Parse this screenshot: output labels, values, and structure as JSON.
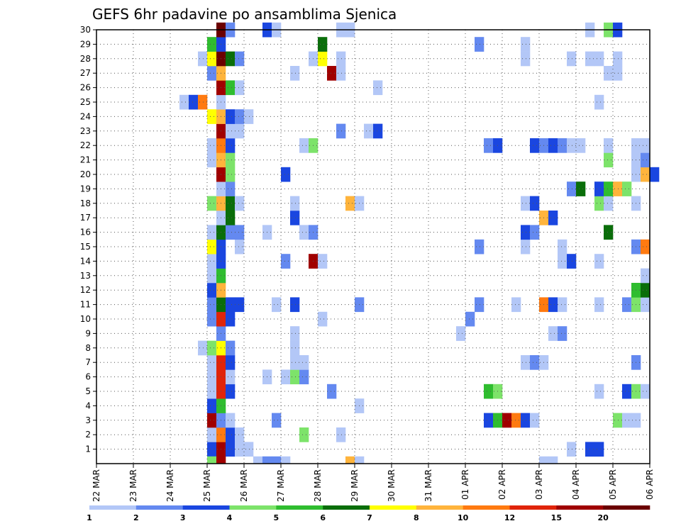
{
  "chart_data": {
    "type": "heatmap",
    "title": "GEFS 6hr padavine po ansamblima Sjenica",
    "x_tick_labels": [
      "22 MAR",
      "23 MAR",
      "24 MAR",
      "25 MAR",
      "26 MAR",
      "27 MAR",
      "28 MAR",
      "29 MAR",
      "30 MAR",
      "31 MAR",
      "01 APR",
      "02 APR",
      "03 APR",
      "04 APR",
      "05 APR",
      "06 APR"
    ],
    "y_tick_labels": [
      "1",
      "2",
      "3",
      "4",
      "5",
      "6",
      "7",
      "8",
      "9",
      "10",
      "11",
      "12",
      "13",
      "14",
      "15",
      "16",
      "17",
      "18",
      "19",
      "20",
      "21",
      "22",
      "23",
      "24",
      "25",
      "26",
      "27",
      "28",
      "29",
      "30"
    ],
    "grid": true,
    "x_steps_per_day": 4,
    "levels": [
      1,
      2,
      3,
      4,
      5,
      6,
      7,
      8,
      10,
      12,
      15,
      20
    ],
    "level_colors": [
      "#b3c7f7",
      "#6489f0",
      "#1a46e0",
      "#7de36a",
      "#2fbd2f",
      "#0a6e0a",
      "#ffff00",
      "#ffb43c",
      "#ff7a10",
      "#e0240a",
      "#a00000",
      "#6b0000"
    ],
    "members": [
      {
        "member": 1,
        "cells": [
          [
            12,
            3
          ],
          [
            13,
            11
          ],
          [
            14,
            3
          ],
          [
            15,
            1
          ],
          [
            16,
            1
          ],
          [
            51,
            1
          ],
          [
            53,
            3
          ],
          [
            54,
            3
          ]
        ]
      },
      {
        "member": 2,
        "cells": [
          [
            12,
            1
          ],
          [
            13,
            9
          ],
          [
            14,
            3
          ],
          [
            15,
            1
          ],
          [
            22,
            4
          ],
          [
            26,
            1
          ]
        ]
      },
      {
        "member": 3,
        "cells": [
          [
            12,
            11
          ],
          [
            13,
            2
          ],
          [
            14,
            1
          ],
          [
            19,
            2
          ],
          [
            42,
            3
          ],
          [
            43,
            5
          ],
          [
            44,
            11
          ],
          [
            45,
            9
          ],
          [
            46,
            3
          ],
          [
            47,
            1
          ],
          [
            56,
            4
          ],
          [
            57,
            1
          ],
          [
            58,
            1
          ]
        ]
      },
      {
        "member": 4,
        "cells": [
          [
            12,
            3
          ],
          [
            13,
            5
          ],
          [
            28,
            1
          ]
        ]
      },
      {
        "member": 5,
        "cells": [
          [
            12,
            1
          ],
          [
            13,
            10
          ],
          [
            14,
            3
          ],
          [
            25,
            2
          ],
          [
            42,
            5
          ],
          [
            43,
            4
          ],
          [
            54,
            1
          ],
          [
            57,
            3
          ],
          [
            58,
            4
          ],
          [
            59,
            1
          ]
        ]
      },
      {
        "member": 6,
        "cells": [
          [
            12,
            1
          ],
          [
            13,
            10
          ],
          [
            14,
            1
          ],
          [
            18,
            1
          ],
          [
            20,
            1
          ],
          [
            21,
            4
          ],
          [
            22,
            2
          ]
        ]
      },
      {
        "member": 7,
        "cells": [
          [
            12,
            1
          ],
          [
            13,
            10
          ],
          [
            14,
            3
          ],
          [
            21,
            1
          ],
          [
            22,
            1
          ],
          [
            46,
            1
          ],
          [
            47,
            2
          ],
          [
            48,
            1
          ],
          [
            58,
            2
          ]
        ]
      },
      {
        "member": 8,
        "cells": [
          [
            11,
            1
          ],
          [
            12,
            4
          ],
          [
            13,
            7
          ],
          [
            14,
            2
          ],
          [
            21,
            1
          ]
        ]
      },
      {
        "member": 9,
        "cells": [
          [
            13,
            2
          ],
          [
            21,
            1
          ],
          [
            39,
            1
          ],
          [
            49,
            1
          ],
          [
            50,
            2
          ]
        ]
      },
      {
        "member": 10,
        "cells": [
          [
            12,
            2
          ],
          [
            13,
            10
          ],
          [
            14,
            3
          ],
          [
            24,
            1
          ],
          [
            40,
            2
          ]
        ]
      },
      {
        "member": 11,
        "cells": [
          [
            12,
            2
          ],
          [
            13,
            6
          ],
          [
            14,
            3
          ],
          [
            15,
            3
          ],
          [
            19,
            1
          ],
          [
            21,
            3
          ],
          [
            28,
            2
          ],
          [
            41,
            2
          ],
          [
            45,
            1
          ],
          [
            48,
            9
          ],
          [
            49,
            3
          ],
          [
            50,
            1
          ],
          [
            54,
            1
          ],
          [
            57,
            2
          ],
          [
            58,
            4
          ],
          [
            59,
            1
          ]
        ]
      },
      {
        "member": 12,
        "cells": [
          [
            12,
            3
          ],
          [
            13,
            8
          ],
          [
            58,
            5
          ],
          [
            59,
            6
          ]
        ]
      },
      {
        "member": 13,
        "cells": [
          [
            12,
            1
          ],
          [
            13,
            5
          ],
          [
            59,
            1
          ]
        ]
      },
      {
        "member": 14,
        "cells": [
          [
            12,
            1
          ],
          [
            13,
            3
          ],
          [
            20,
            2
          ],
          [
            23,
            11
          ],
          [
            24,
            1
          ],
          [
            50,
            1
          ],
          [
            51,
            3
          ],
          [
            54,
            1
          ]
        ]
      },
      {
        "member": 15,
        "cells": [
          [
            12,
            7
          ],
          [
            13,
            3
          ],
          [
            15,
            1
          ],
          [
            41,
            2
          ],
          [
            46,
            1
          ],
          [
            50,
            1
          ],
          [
            58,
            2
          ],
          [
            59,
            9
          ]
        ]
      },
      {
        "member": 16,
        "cells": [
          [
            12,
            1
          ],
          [
            13,
            6
          ],
          [
            14,
            2
          ],
          [
            15,
            2
          ],
          [
            18,
            1
          ],
          [
            22,
            1
          ],
          [
            23,
            2
          ],
          [
            46,
            3
          ],
          [
            47,
            2
          ],
          [
            55,
            6
          ]
        ]
      },
      {
        "member": 17,
        "cells": [
          [
            13,
            1
          ],
          [
            14,
            6
          ],
          [
            21,
            3
          ],
          [
            48,
            8
          ],
          [
            49,
            3
          ]
        ]
      },
      {
        "member": 18,
        "cells": [
          [
            12,
            4
          ],
          [
            13,
            8
          ],
          [
            14,
            6
          ],
          [
            15,
            1
          ],
          [
            21,
            1
          ],
          [
            27,
            8
          ],
          [
            28,
            1
          ],
          [
            46,
            1
          ],
          [
            47,
            3
          ],
          [
            54,
            4
          ],
          [
            55,
            1
          ],
          [
            58,
            1
          ]
        ]
      },
      {
        "member": 19,
        "cells": [
          [
            13,
            1
          ],
          [
            14,
            2
          ],
          [
            51,
            2
          ],
          [
            52,
            6
          ],
          [
            54,
            3
          ],
          [
            55,
            5
          ],
          [
            56,
            8
          ],
          [
            57,
            4
          ]
        ]
      },
      {
        "member": 20,
        "cells": [
          [
            13,
            11
          ],
          [
            14,
            4
          ],
          [
            20,
            3
          ],
          [
            58,
            1
          ],
          [
            59,
            8
          ],
          [
            60,
            3
          ]
        ]
      },
      {
        "member": 21,
        "cells": [
          [
            12,
            1
          ],
          [
            13,
            8
          ],
          [
            14,
            4
          ],
          [
            55,
            4
          ],
          [
            58,
            1
          ],
          [
            59,
            2
          ]
        ]
      },
      {
        "member": 22,
        "cells": [
          [
            12,
            1
          ],
          [
            13,
            9
          ],
          [
            14,
            3
          ],
          [
            22,
            1
          ],
          [
            23,
            4
          ],
          [
            42,
            2
          ],
          [
            43,
            3
          ],
          [
            47,
            3
          ],
          [
            48,
            2
          ],
          [
            49,
            3
          ],
          [
            50,
            2
          ],
          [
            51,
            1
          ],
          [
            52,
            1
          ],
          [
            55,
            1
          ],
          [
            58,
            1
          ],
          [
            59,
            1
          ]
        ]
      },
      {
        "member": 23,
        "cells": [
          [
            13,
            11
          ],
          [
            14,
            1
          ],
          [
            15,
            1
          ],
          [
            26,
            2
          ],
          [
            29,
            1
          ],
          [
            30,
            3
          ]
        ]
      },
      {
        "member": 24,
        "cells": [
          [
            12,
            7
          ],
          [
            13,
            8
          ],
          [
            14,
            3
          ],
          [
            15,
            2
          ],
          [
            16,
            1
          ]
        ]
      },
      {
        "member": 25,
        "cells": [
          [
            9,
            1
          ],
          [
            10,
            3
          ],
          [
            11,
            9
          ],
          [
            13,
            1
          ],
          [
            54,
            1
          ]
        ]
      },
      {
        "member": 26,
        "cells": [
          [
            13,
            11
          ],
          [
            14,
            5
          ],
          [
            15,
            1
          ],
          [
            30,
            1
          ]
        ]
      },
      {
        "member": 27,
        "cells": [
          [
            12,
            2
          ],
          [
            13,
            8
          ],
          [
            21,
            1
          ],
          [
            25,
            11
          ],
          [
            26,
            1
          ],
          [
            55,
            1
          ],
          [
            56,
            1
          ]
        ]
      },
      {
        "member": 28,
        "cells": [
          [
            11,
            1
          ],
          [
            12,
            7
          ],
          [
            13,
            12
          ],
          [
            14,
            6
          ],
          [
            15,
            2
          ],
          [
            23,
            1
          ],
          [
            24,
            7
          ],
          [
            26,
            1
          ],
          [
            46,
            1
          ],
          [
            51,
            1
          ],
          [
            53,
            1
          ],
          [
            54,
            1
          ],
          [
            56,
            1
          ]
        ]
      },
      {
        "member": 29,
        "cells": [
          [
            12,
            5
          ],
          [
            13,
            3
          ],
          [
            24,
            6
          ],
          [
            41,
            2
          ],
          [
            46,
            1
          ]
        ]
      },
      {
        "member": 30,
        "cells": [
          [
            13,
            12
          ],
          [
            14,
            2
          ],
          [
            18,
            3
          ],
          [
            19,
            1
          ],
          [
            26,
            1
          ],
          [
            27,
            1
          ],
          [
            53,
            1
          ],
          [
            55,
            4
          ],
          [
            56,
            3
          ]
        ]
      }
    ],
    "bottom_strip": [
      [
        12,
        4
      ],
      [
        13,
        11
      ],
      [
        17,
        1
      ],
      [
        18,
        2
      ],
      [
        19,
        2
      ],
      [
        20,
        1
      ],
      [
        27,
        8
      ],
      [
        28,
        1
      ],
      [
        48,
        1
      ],
      [
        49,
        1
      ]
    ],
    "colorbar_labels": [
      "1",
      "2",
      "3",
      "4",
      "5",
      "6",
      "7",
      "8",
      "10",
      "12",
      "15",
      "20"
    ]
  }
}
